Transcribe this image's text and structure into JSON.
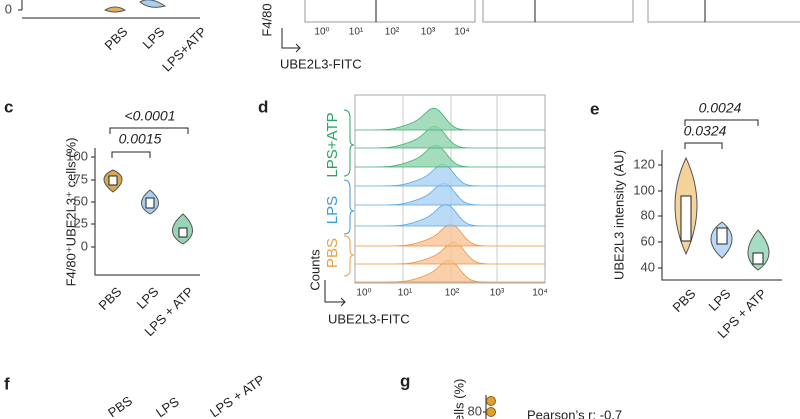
{
  "panel_b": {
    "y_tick": "0",
    "x_labels": [
      "PBS",
      "LPS",
      "LPS+ATP"
    ],
    "y_label": "F4/80",
    "x_ticks": [
      "10⁰",
      "10¹",
      "10²",
      "10³",
      "10⁴"
    ],
    "x_label": "UBE2L3-FITC"
  },
  "panel_c": {
    "letter": "c",
    "y_label": "F4/80⁺UBE2L3⁺ cells (%)",
    "y_ticks": [
      "100",
      "75",
      "50",
      "25",
      "0"
    ],
    "x_labels": [
      "PBS",
      "LPS",
      "LPS + ATP"
    ],
    "p_values": [
      "<0.0001",
      "0.0015"
    ]
  },
  "panel_d": {
    "letter": "d",
    "groups": [
      "LPS+ATP",
      "LPS",
      "PBS"
    ],
    "y_label": "Counts",
    "x_ticks": [
      "10⁰",
      "10¹",
      "10²",
      "10³",
      "10⁴"
    ],
    "x_label": "UBE2L3-FITC"
  },
  "panel_e": {
    "letter": "e",
    "y_label": "UBE2L3 intensity (AU)",
    "y_ticks": [
      "120",
      "100",
      "80",
      "60",
      "40"
    ],
    "x_labels": [
      "PBS",
      "LPS",
      "LPS + ATP"
    ],
    "p_values": [
      "0.0024",
      "0.0324"
    ]
  },
  "panel_f": {
    "letter": "f",
    "labels": [
      "PBS",
      "LPS",
      "LPS + ATP"
    ]
  },
  "panel_g": {
    "letter": "g",
    "y_label": "Cells (%)",
    "y_tick": "80",
    "annotation": "Pearson’s r: -0.7"
  }
}
